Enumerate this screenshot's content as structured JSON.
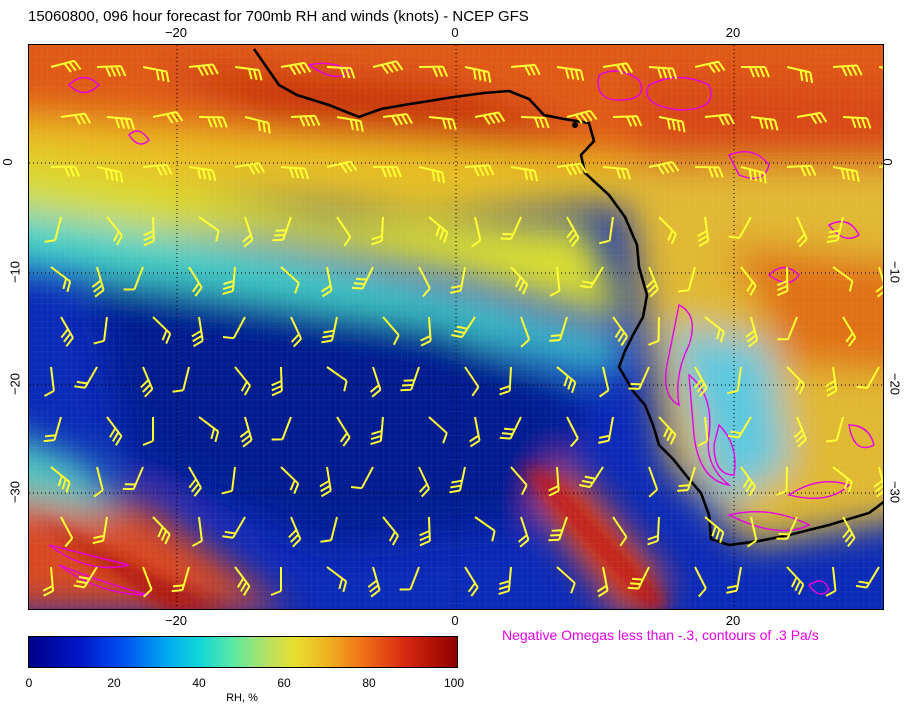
{
  "title": "15060800, 096 hour forecast for 700mb RH and winds (knots) - NCEP GFS",
  "axes": {
    "top_ticks": [
      "−20",
      "0",
      "20"
    ],
    "bottom_ticks": [
      "−20",
      "0",
      "20"
    ],
    "left_ticks": [
      "0",
      "−10",
      "−20",
      "−30"
    ],
    "right_ticks": [
      "0",
      "−10",
      "−20",
      "−30"
    ]
  },
  "note": "Negative Omegas less than -.3, contours of .3 Pa/s",
  "colorbar": {
    "labels": [
      "0",
      "20",
      "40",
      "60",
      "80",
      "100"
    ],
    "title": "RH, %"
  },
  "colors": {
    "barb": "#ffff33",
    "omega_contour": "#e600e6",
    "coast": "#000000"
  }
}
